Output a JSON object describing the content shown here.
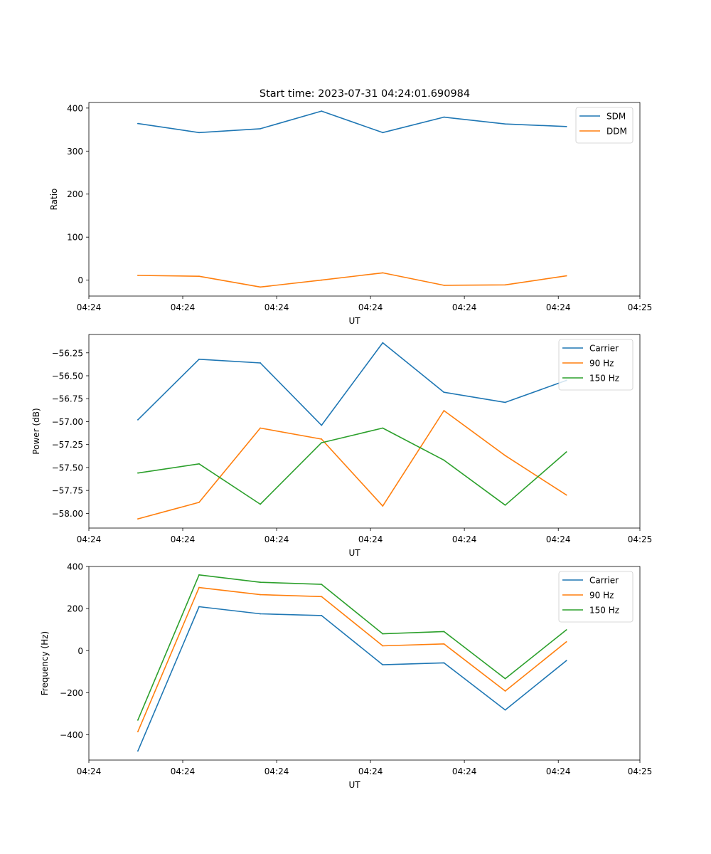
{
  "figure": {
    "title": "Start time: 2023-07-31 04:24:01.690984"
  },
  "chart_data": [
    {
      "type": "line",
      "xlabel": "UT",
      "ylabel": "Ratio",
      "x": [
        1,
        2,
        3,
        4,
        5,
        6,
        7,
        8
      ],
      "xlim": [
        0.2,
        9.2
      ],
      "xticks": [
        0.2,
        1.733,
        3.267,
        4.8,
        6.333,
        7.867,
        9.2
      ],
      "xtick_labels": [
        "04:24",
        "04:24",
        "04:24",
        "04:24",
        "04:24",
        "04:24",
        "04:25"
      ],
      "ylim": [
        -37,
        413
      ],
      "yticks": [
        0,
        100,
        200,
        300,
        400
      ],
      "ytick_labels": [
        "0",
        "100",
        "200",
        "300",
        "400"
      ],
      "legend_position": "top-right",
      "series": [
        {
          "name": "SDM",
          "color": "#1f77b4",
          "values": [
            364,
            343,
            352,
            393,
            343,
            379,
            363,
            357
          ]
        },
        {
          "name": "DDM",
          "color": "#ff7f0e",
          "values": [
            11,
            9,
            -16,
            0,
            17,
            -12,
            -11,
            10
          ]
        }
      ]
    },
    {
      "type": "line",
      "xlabel": "UT",
      "ylabel": "Power (dB)",
      "x": [
        1,
        2,
        3,
        4,
        5,
        6,
        7,
        8
      ],
      "xlim": [
        0.2,
        9.2
      ],
      "xticks": [
        0.2,
        1.733,
        3.267,
        4.8,
        6.333,
        7.867,
        9.2
      ],
      "xtick_labels": [
        "04:24",
        "04:24",
        "04:24",
        "04:24",
        "04:24",
        "04:24",
        "04:25"
      ],
      "ylim": [
        -58.16,
        -56.05
      ],
      "yticks": [
        -58.0,
        -57.75,
        -57.5,
        -57.25,
        -57.0,
        -56.75,
        -56.5,
        -56.25
      ],
      "ytick_labels": [
        "−58.00",
        "−57.75",
        "−57.50",
        "−57.25",
        "−57.00",
        "−56.75",
        "−56.50",
        "−56.25"
      ],
      "legend_position": "top-right",
      "series": [
        {
          "name": "Carrier",
          "color": "#1f77b4",
          "values": [
            -56.98,
            -56.32,
            -56.36,
            -57.04,
            -56.14,
            -56.68,
            -56.79,
            -56.55
          ]
        },
        {
          "name": "90 Hz",
          "color": "#ff7f0e",
          "values": [
            -58.06,
            -57.88,
            -57.07,
            -57.19,
            -57.92,
            -56.88,
            -57.37,
            -57.8
          ]
        },
        {
          "name": "150 Hz",
          "color": "#2ca02c",
          "values": [
            -57.56,
            -57.46,
            -57.9,
            -57.23,
            -57.07,
            -57.42,
            -57.91,
            -57.33
          ]
        }
      ]
    },
    {
      "type": "line",
      "xlabel": "UT",
      "ylabel": "Frequency (Hz)",
      "x": [
        1,
        2,
        3,
        4,
        5,
        6,
        7,
        8
      ],
      "xlim": [
        0.2,
        9.2
      ],
      "xticks": [
        0.2,
        1.733,
        3.267,
        4.8,
        6.333,
        7.867,
        9.2
      ],
      "xtick_labels": [
        "04:24",
        "04:24",
        "04:24",
        "04:24",
        "04:24",
        "04:24",
        "04:25"
      ],
      "ylim": [
        -520,
        400
      ],
      "yticks": [
        -400,
        -200,
        0,
        200,
        400
      ],
      "ytick_labels": [
        "−400",
        "−200",
        "0",
        "200",
        "400"
      ],
      "legend_position": "top-right",
      "series": [
        {
          "name": "Carrier",
          "color": "#1f77b4",
          "values": [
            -477,
            209,
            175,
            167,
            -67,
            -58,
            -282,
            -47
          ]
        },
        {
          "name": "90 Hz",
          "color": "#ff7f0e",
          "values": [
            -385,
            300,
            266,
            257,
            23,
            32,
            -192,
            42
          ]
        },
        {
          "name": "150 Hz",
          "color": "#2ca02c",
          "values": [
            -330,
            360,
            325,
            315,
            80,
            91,
            -133,
            99
          ]
        }
      ]
    }
  ]
}
